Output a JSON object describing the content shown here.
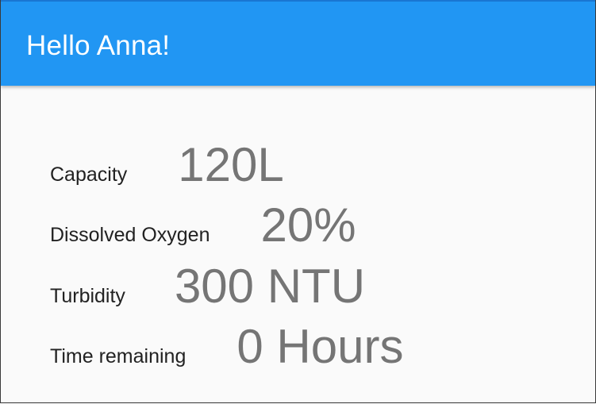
{
  "appbar": {
    "title": "Hello Anna!",
    "color": "#2196f3"
  },
  "stats": [
    {
      "label": "Capacity",
      "value": "120L"
    },
    {
      "label": "Dissolved Oxygen",
      "value": "20%"
    },
    {
      "label": "Turbidity",
      "value": "300 NTU"
    },
    {
      "label": "Time remaining",
      "value": "0 Hours"
    }
  ]
}
